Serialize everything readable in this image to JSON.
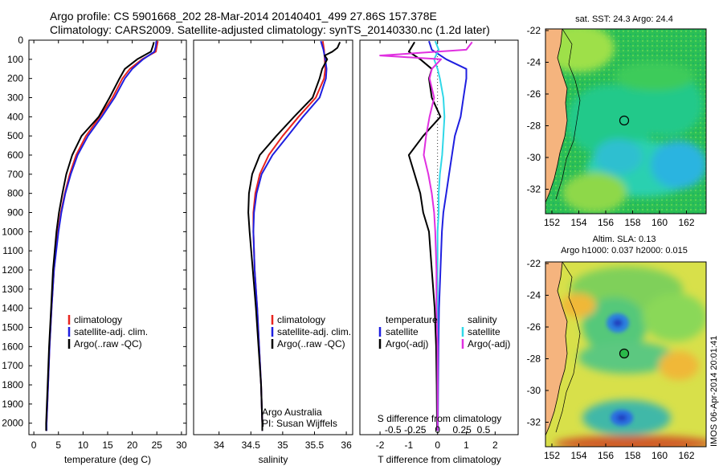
{
  "header": {
    "line1": "Argo profile: CS 5901668_202 28-Mar-2014 20140401_499 27.86S 157.378E",
    "line2": "Climatology: CARS2009. Satellite-adjusted climatology: synTS_20140330.nc (1.2d later)"
  },
  "colors": {
    "climatology": "#e8251f",
    "satellite": "#1f1fe0",
    "argo": "#000000",
    "salinity_sat": "#30d8e8",
    "salinity_argo": "#e030e0"
  },
  "credit": {
    "line1": "Argo Australia",
    "line2": "PI: Susan Wijffels"
  },
  "watermark": "IMOS 06-Apr-2014 20:01:41",
  "map_top_title": "sat. SST: 24.3  Argo: 24.4",
  "map_bottom_title1": "Altim. SLA: 0.13",
  "map_bottom_title2": "Argo h1000: 0.037 h2000: 0.015",
  "chart_data": [
    {
      "type": "line",
      "title": "",
      "xlabel": "temperature (deg C)",
      "ylabel": "",
      "xlim": [
        -1,
        31
      ],
      "ylim": [
        2060,
        0
      ],
      "xticks": [
        0,
        5,
        10,
        15,
        20,
        25,
        30
      ],
      "yticks": [
        0,
        100,
        200,
        300,
        400,
        500,
        600,
        700,
        800,
        900,
        1000,
        1100,
        1200,
        1300,
        1400,
        1500,
        1600,
        1700,
        1800,
        1900,
        2000
      ],
      "legend": [
        "climatology",
        "satellite-adj. clim.",
        "Argo(..raw -QC)"
      ],
      "series": [
        {
          "name": "climatology",
          "depth": [
            5,
            30,
            60,
            100,
            150,
            200,
            300,
            400,
            500,
            600,
            700,
            800,
            900,
            1000,
            1200,
            1400,
            1600,
            1800,
            2000,
            2040
          ],
          "values": [
            25.2,
            25.0,
            24.8,
            22.0,
            19.5,
            18.0,
            16.0,
            13.4,
            10.6,
            8.6,
            7.3,
            6.3,
            5.5,
            4.9,
            4.1,
            3.6,
            3.2,
            2.9,
            2.6,
            2.6
          ]
        },
        {
          "name": "satellite-adj. clim.",
          "depth": [
            5,
            30,
            60,
            100,
            150,
            200,
            300,
            400,
            500,
            600,
            700,
            800,
            900,
            1000,
            1200,
            1400,
            1600,
            1800,
            2000,
            2040
          ],
          "values": [
            24.9,
            24.8,
            24.5,
            22.2,
            20.0,
            18.5,
            16.4,
            13.8,
            11.0,
            8.9,
            7.5,
            6.4,
            5.6,
            5.0,
            4.1,
            3.6,
            3.2,
            2.9,
            2.6,
            2.6
          ]
        },
        {
          "name": "Argo",
          "depth": [
            10,
            30,
            60,
            100,
            150,
            200,
            300,
            400,
            500,
            600,
            700,
            800,
            900,
            1000,
            1200,
            1400,
            1600,
            1800,
            2000,
            2040
          ],
          "values": [
            24.4,
            24.2,
            23.8,
            21.0,
            18.5,
            17.4,
            15.4,
            13.2,
            9.7,
            7.8,
            6.6,
            5.8,
            5.1,
            4.6,
            3.9,
            3.5,
            3.1,
            2.8,
            2.5,
            2.5
          ]
        }
      ]
    },
    {
      "type": "line",
      "title": "",
      "xlabel": "salinity",
      "ylabel": "",
      "xlim": [
        33.6,
        36.1
      ],
      "ylim": [
        2060,
        0
      ],
      "xticks": [
        34,
        34.5,
        35,
        35.5,
        36
      ],
      "legend": [
        "climatology",
        "satellite-adj. clim.",
        "Argo(..raw -QC)"
      ],
      "series": [
        {
          "name": "climatology",
          "depth": [
            5,
            50,
            100,
            150,
            200,
            300,
            400,
            500,
            600,
            700,
            800,
            900,
            1000,
            1200,
            1400,
            1600,
            1800,
            2000,
            2040
          ],
          "values": [
            35.63,
            35.65,
            35.66,
            35.67,
            35.65,
            35.52,
            35.25,
            35.0,
            34.78,
            34.64,
            34.57,
            34.54,
            34.54,
            34.56,
            34.6,
            34.63,
            34.66,
            34.68,
            34.68
          ]
        },
        {
          "name": "satellite-adj. clim.",
          "depth": [
            5,
            50,
            100,
            150,
            200,
            300,
            400,
            500,
            600,
            700,
            800,
            900,
            1000,
            1200,
            1400,
            1600,
            1800,
            2000,
            2040
          ],
          "values": [
            35.6,
            35.64,
            35.67,
            35.69,
            35.68,
            35.58,
            35.32,
            35.08,
            34.84,
            34.67,
            34.59,
            34.55,
            34.54,
            34.56,
            34.6,
            34.63,
            34.66,
            34.68,
            34.68
          ]
        },
        {
          "name": "Argo",
          "depth": [
            10,
            40,
            60,
            80,
            100,
            150,
            200,
            300,
            400,
            500,
            600,
            700,
            800,
            900,
            1000,
            1200,
            1400,
            1600,
            1800,
            2000,
            2040
          ],
          "values": [
            35.9,
            35.86,
            35.78,
            35.66,
            35.7,
            35.62,
            35.58,
            35.47,
            35.18,
            34.9,
            34.64,
            34.52,
            34.47,
            34.46,
            34.48,
            34.53,
            34.58,
            34.62,
            34.66,
            34.68,
            34.68
          ]
        }
      ]
    },
    {
      "type": "line",
      "title": "",
      "xlabel": "T difference from climatology",
      "xlabel_top": "S difference from climatology",
      "xlim": [
        -2.7,
        2.8
      ],
      "ylim": [
        2060,
        0
      ],
      "xticks": [
        -2,
        -1,
        0,
        1,
        2
      ],
      "xticks_s": [
        "-0.5",
        "-0.25",
        "0",
        "0.25",
        "0.5"
      ],
      "legend_temperature_title": "temperature",
      "legend_salinity_title": "salinity",
      "legend": [
        "satellite",
        "Argo(-adj)",
        "satellite",
        "Argo(-adj)"
      ],
      "series": [
        {
          "name": "temperature satellite",
          "depth": [
            5,
            50,
            100,
            150,
            200,
            300,
            400,
            500,
            600,
            700,
            800,
            900,
            1000,
            1200,
            1400,
            1600,
            1800,
            2000,
            2040
          ],
          "values": [
            -0.3,
            -0.2,
            0.3,
            1.0,
            1.0,
            0.9,
            0.8,
            0.6,
            0.5,
            0.4,
            0.3,
            0.2,
            0.15,
            0.1,
            0.05,
            0.03,
            0.02,
            0.01,
            0.01
          ]
        },
        {
          "name": "temperature Argo(-adj)",
          "depth": [
            10,
            60,
            100,
            150,
            200,
            300,
            400,
            500,
            600,
            700,
            800,
            900,
            1000,
            1200,
            1400,
            1600,
            1800,
            2000,
            2040
          ],
          "values": [
            -0.8,
            -1.0,
            -0.6,
            -0.2,
            -0.3,
            -0.2,
            0.1,
            -0.5,
            -1.0,
            -0.8,
            -0.6,
            -0.5,
            -0.3,
            -0.2,
            -0.1,
            -0.05,
            -0.03,
            -0.02,
            -0.02
          ]
        },
        {
          "name": "salinity satellite",
          "depth": [
            5,
            50,
            100,
            150,
            200,
            300,
            400,
            500,
            600,
            700,
            800,
            900,
            1000,
            1200,
            1400,
            1600,
            1800,
            2000,
            2040
          ],
          "values": [
            -0.02,
            0.01,
            -0.03,
            0.0,
            0.02,
            0.05,
            0.06,
            0.05,
            0.04,
            0.02,
            0.01,
            0.01,
            0.0,
            0.0,
            0.0,
            0.0,
            0.0,
            0.0,
            0.0
          ]
        },
        {
          "name": "salinity Argo(-adj)",
          "depth": [
            10,
            50,
            80,
            100,
            150,
            200,
            300,
            400,
            500,
            600,
            700,
            800,
            900,
            1000,
            1200,
            1400,
            1600,
            1800,
            2000,
            2040
          ],
          "values": [
            0.3,
            0.25,
            -0.5,
            0.03,
            -0.05,
            -0.07,
            -0.03,
            -0.07,
            -0.1,
            -0.12,
            -0.08,
            -0.05,
            -0.03,
            -0.02,
            -0.01,
            -0.01,
            0.0,
            0.0,
            0.0,
            0.0
          ]
        }
      ]
    }
  ],
  "maps": {
    "xticks": [
      "152",
      "154",
      "156",
      "158",
      "160",
      "162"
    ],
    "yticks": [
      "-22",
      "-24",
      "-26",
      "-28",
      "-30",
      "-32"
    ]
  }
}
